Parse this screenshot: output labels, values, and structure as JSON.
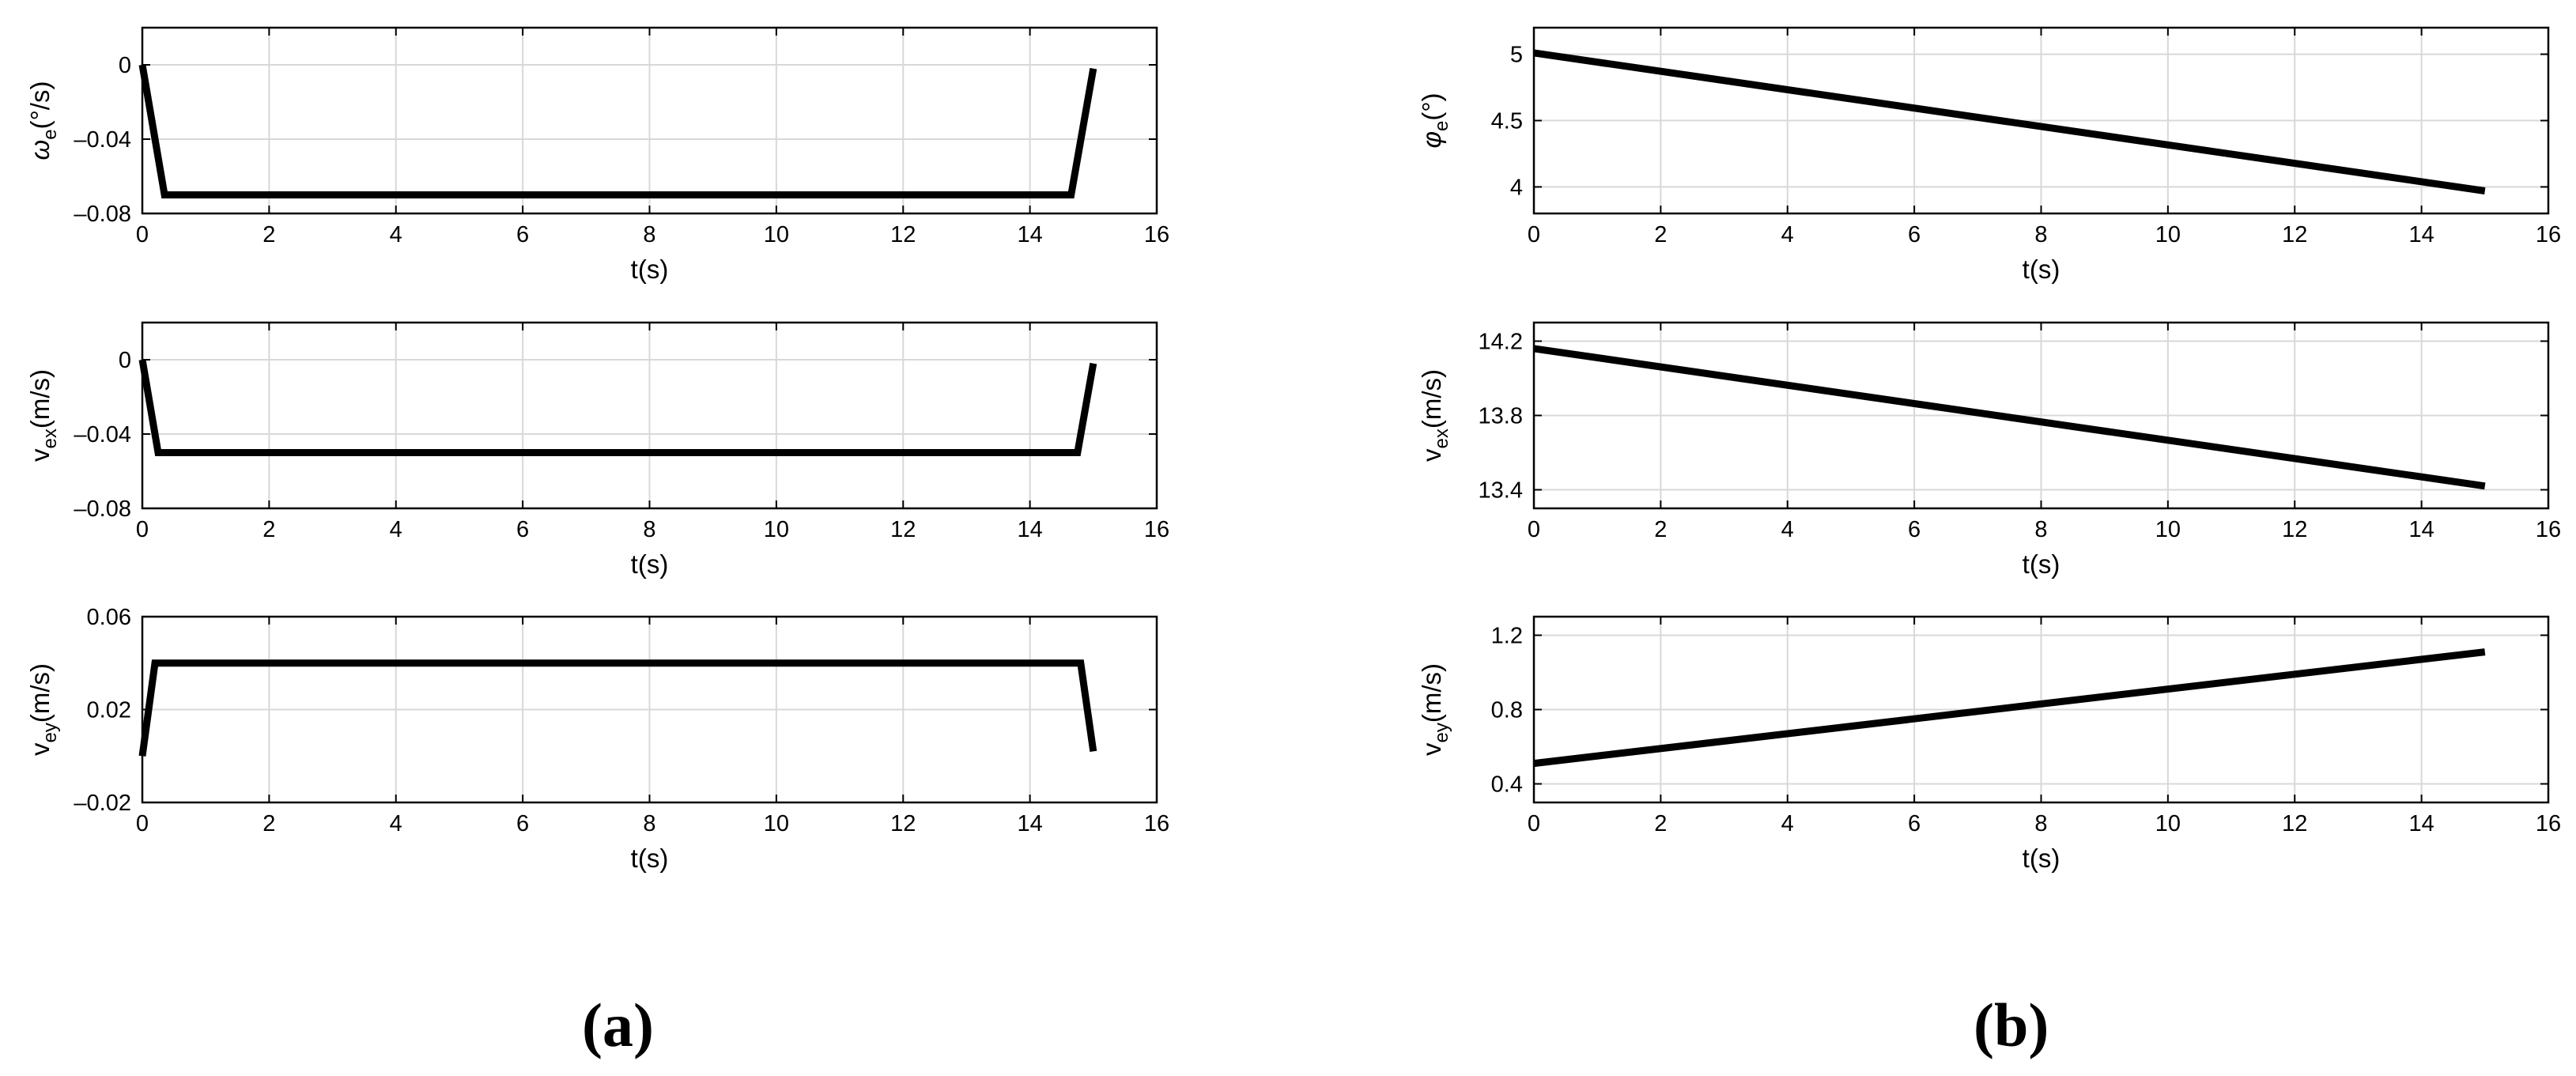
{
  "chart_data": [
    {
      "type": "line",
      "id": "a1",
      "ylabel": {
        "base": "ω",
        "sub": "e",
        "rest": "(°/s)"
      },
      "xlabel": "t(s)",
      "xlim": [
        0,
        16
      ],
      "ylim": [
        -0.08,
        0.02
      ],
      "xticks": [
        0,
        2,
        4,
        6,
        8,
        10,
        12,
        14,
        16
      ],
      "yticks": [
        -0.08,
        -0.04,
        0
      ],
      "ytick_labels": [
        "–0.08",
        "–0.04",
        "0"
      ],
      "grid": true,
      "series": [
        {
          "x": [
            0,
            0.35,
            14.65,
            15.0
          ],
          "y": [
            0,
            -0.07,
            -0.07,
            -0.002
          ]
        }
      ]
    },
    {
      "type": "line",
      "id": "a2",
      "ylabel": {
        "base": "v",
        "sub": "ex",
        "rest": "(m/s)"
      },
      "xlabel": "t(s)",
      "xlim": [
        0,
        16
      ],
      "ylim": [
        -0.08,
        0.02
      ],
      "xticks": [
        0,
        2,
        4,
        6,
        8,
        10,
        12,
        14,
        16
      ],
      "yticks": [
        -0.08,
        -0.04,
        0
      ],
      "ytick_labels": [
        "–0.08",
        "–0.04",
        "0"
      ],
      "grid": true,
      "series": [
        {
          "x": [
            0,
            0.25,
            14.75,
            15.0
          ],
          "y": [
            0,
            -0.05,
            -0.05,
            -0.002
          ]
        }
      ]
    },
    {
      "type": "line",
      "id": "a3",
      "ylabel": {
        "base": "v",
        "sub": "ey",
        "rest": "(m/s)"
      },
      "xlabel": "t(s)",
      "xlim": [
        0,
        16
      ],
      "ylim": [
        -0.02,
        0.06
      ],
      "xticks": [
        0,
        2,
        4,
        6,
        8,
        10,
        12,
        14,
        16
      ],
      "yticks": [
        -0.02,
        0.02,
        0.06
      ],
      "ytick_labels": [
        "–0.02",
        "0.02",
        "0.06"
      ],
      "grid": true,
      "series": [
        {
          "x": [
            0,
            0.2,
            14.8,
            15.0
          ],
          "y": [
            0,
            0.04,
            0.04,
            0.002
          ]
        }
      ]
    },
    {
      "type": "line",
      "id": "b1",
      "ylabel": {
        "base": "φ",
        "sub": "e",
        "rest": "(°)"
      },
      "xlabel": "t(s)",
      "xlim": [
        0,
        16
      ],
      "ylim": [
        3.8,
        5.2
      ],
      "xticks": [
        0,
        2,
        4,
        6,
        8,
        10,
        12,
        14,
        16
      ],
      "yticks": [
        4,
        4.5,
        5
      ],
      "ytick_labels": [
        "4",
        "4.5",
        "5"
      ],
      "grid": true,
      "series": [
        {
          "x": [
            0,
            15
          ],
          "y": [
            5.01,
            3.97
          ]
        }
      ]
    },
    {
      "type": "line",
      "id": "b2",
      "ylabel": {
        "base": "v",
        "sub": "ex",
        "rest": "(m/s)"
      },
      "xlabel": "t(s)",
      "xlim": [
        0,
        16
      ],
      "ylim": [
        13.3,
        14.3
      ],
      "xticks": [
        0,
        2,
        4,
        6,
        8,
        10,
        12,
        14,
        16
      ],
      "yticks": [
        13.4,
        13.8,
        14.2
      ],
      "ytick_labels": [
        "13.4",
        "13.8",
        "14.2"
      ],
      "grid": true,
      "series": [
        {
          "x": [
            0,
            15
          ],
          "y": [
            14.16,
            13.42
          ]
        }
      ]
    },
    {
      "type": "line",
      "id": "b3",
      "ylabel": {
        "base": "v",
        "sub": "ey",
        "rest": "(m/s)"
      },
      "xlabel": "t(s)",
      "xlim": [
        0,
        16
      ],
      "ylim": [
        0.3,
        1.3
      ],
      "xticks": [
        0,
        2,
        4,
        6,
        8,
        10,
        12,
        14,
        16
      ],
      "yticks": [
        0.4,
        0.8,
        1.2
      ],
      "ytick_labels": [
        "0.4",
        "0.8",
        "1.2"
      ],
      "grid": true,
      "series": [
        {
          "x": [
            0,
            15
          ],
          "y": [
            0.51,
            1.11
          ]
        }
      ]
    }
  ],
  "panel_labels": {
    "a": "(a)",
    "b": "(b)"
  }
}
